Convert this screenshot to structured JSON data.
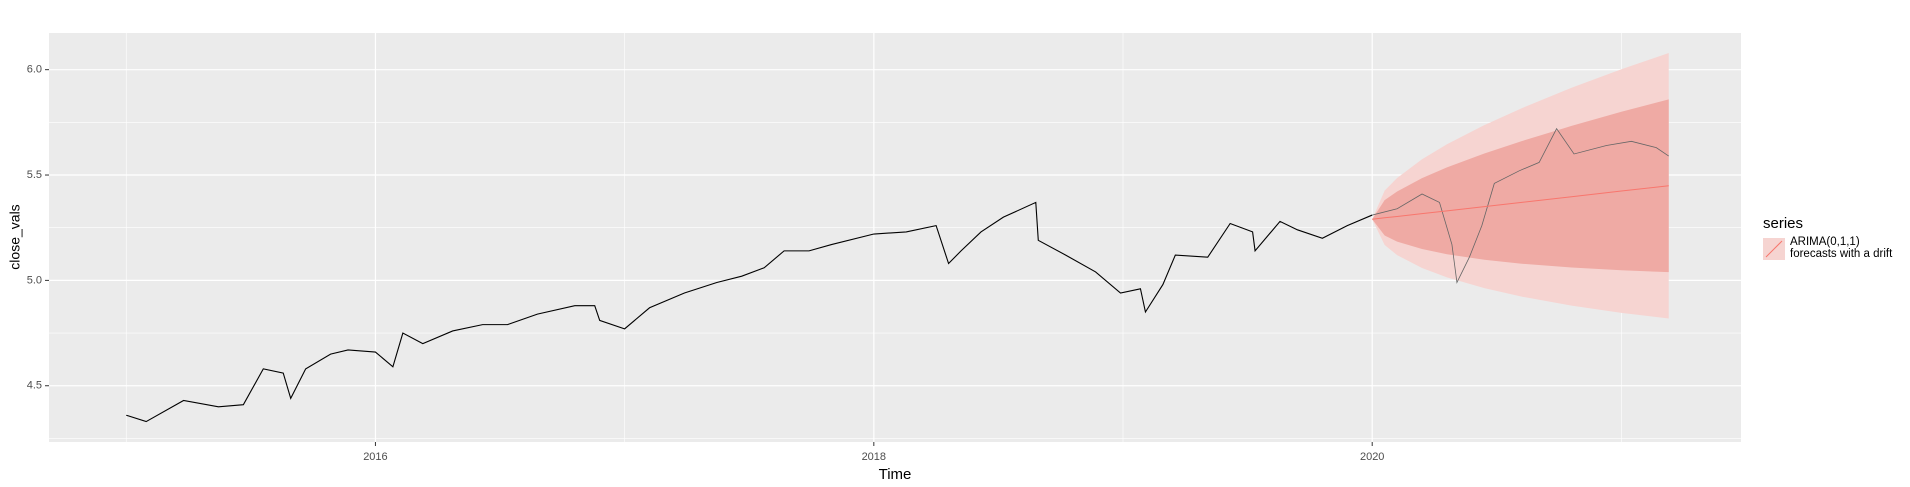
{
  "chart_data": {
    "type": "line",
    "x_label": "Time",
    "y_label": "close_vals",
    "legend_title": "series",
    "grid": true,
    "xlim": [
      2014.69,
      2021.48
    ],
    "ylim": [
      4.233,
      6.174
    ],
    "xticks": [
      2016,
      2018,
      2020
    ],
    "yticks": [
      {
        "value": 4.5,
        "label": "4.5"
      },
      {
        "value": 5.0,
        "label": "5.0"
      },
      {
        "value": 5.5,
        "label": "5.5"
      },
      {
        "value": 6.0,
        "label": "6.0"
      }
    ],
    "series": [
      {
        "color": "#000000",
        "x": [
          2015.0,
          2015.08,
          2015.23,
          2015.37,
          2015.47,
          2015.55,
          2015.63,
          2015.66,
          2015.72,
          2015.82,
          2015.89,
          2016.0,
          2016.07,
          2016.11,
          2016.19,
          2016.31,
          2016.43,
          2016.53,
          2016.65,
          2016.8,
          2016.88,
          2016.9,
          2017.0,
          2017.1,
          2017.24,
          2017.37,
          2017.47,
          2017.56,
          2017.64,
          2017.74,
          2017.83,
          2018.0,
          2018.13,
          2018.25,
          2018.3,
          2018.35,
          2018.43,
          2018.52,
          2018.65,
          2018.66,
          2018.77,
          2018.89,
          2018.99,
          2019.07,
          2019.09,
          2019.16,
          2019.21,
          2019.34,
          2019.43,
          2019.52,
          2019.53,
          2019.63,
          2019.7,
          2019.8,
          2019.9,
          2020.0
        ],
        "values": [
          4.36,
          4.33,
          4.43,
          4.4,
          4.41,
          4.58,
          4.56,
          4.44,
          4.58,
          4.65,
          4.67,
          4.66,
          4.59,
          4.75,
          4.7,
          4.76,
          4.79,
          4.79,
          4.84,
          4.88,
          4.88,
          4.81,
          4.77,
          4.87,
          4.94,
          4.99,
          5.02,
          5.06,
          5.14,
          5.14,
          5.17,
          5.22,
          5.23,
          5.26,
          5.08,
          5.14,
          5.23,
          5.3,
          5.37,
          5.19,
          5.12,
          5.04,
          4.94,
          4.96,
          4.85,
          4.98,
          5.12,
          5.11,
          5.27,
          5.23,
          5.14,
          5.28,
          5.24,
          5.2,
          5.26,
          5.31
        ]
      },
      {
        "color": "#666666",
        "x": [
          2020.0,
          2020.1,
          2020.2,
          2020.27,
          2020.32,
          2020.34,
          2020.39,
          2020.44,
          2020.49,
          2020.59,
          2020.67,
          2020.74,
          2020.81,
          2020.94,
          2021.04,
          2021.14,
          2021.19
        ],
        "values": [
          5.31,
          5.34,
          5.41,
          5.37,
          5.17,
          4.99,
          5.11,
          5.26,
          5.46,
          5.52,
          5.56,
          5.72,
          5.6,
          5.64,
          5.66,
          5.63,
          5.59
        ]
      }
    ],
    "forecast": {
      "name": "ARIMA(0,1,1)\nforecasts with a drift",
      "color": "#f8766d",
      "band80_color": "#efaaa4",
      "band95_color": "#f6d4d1",
      "x": [
        2020.0,
        2020.05,
        2020.1,
        2020.2,
        2020.3,
        2020.45,
        2020.6,
        2020.8,
        2021.0,
        2021.19
      ],
      "mean": [
        5.29,
        5.297,
        5.303,
        5.317,
        5.33,
        5.35,
        5.37,
        5.397,
        5.424,
        5.449
      ],
      "lo80": [
        5.29,
        5.213,
        5.184,
        5.149,
        5.124,
        5.098,
        5.079,
        5.061,
        5.048,
        5.039
      ],
      "hi80": [
        5.29,
        5.381,
        5.422,
        5.485,
        5.536,
        5.602,
        5.661,
        5.733,
        5.8,
        5.859
      ],
      "lo95": [
        5.29,
        5.168,
        5.12,
        5.059,
        5.014,
        4.963,
        4.923,
        4.88,
        4.846,
        4.819
      ],
      "hi95": [
        5.29,
        5.426,
        5.486,
        5.575,
        5.646,
        5.737,
        5.817,
        5.914,
        6.002,
        6.079
      ]
    }
  }
}
